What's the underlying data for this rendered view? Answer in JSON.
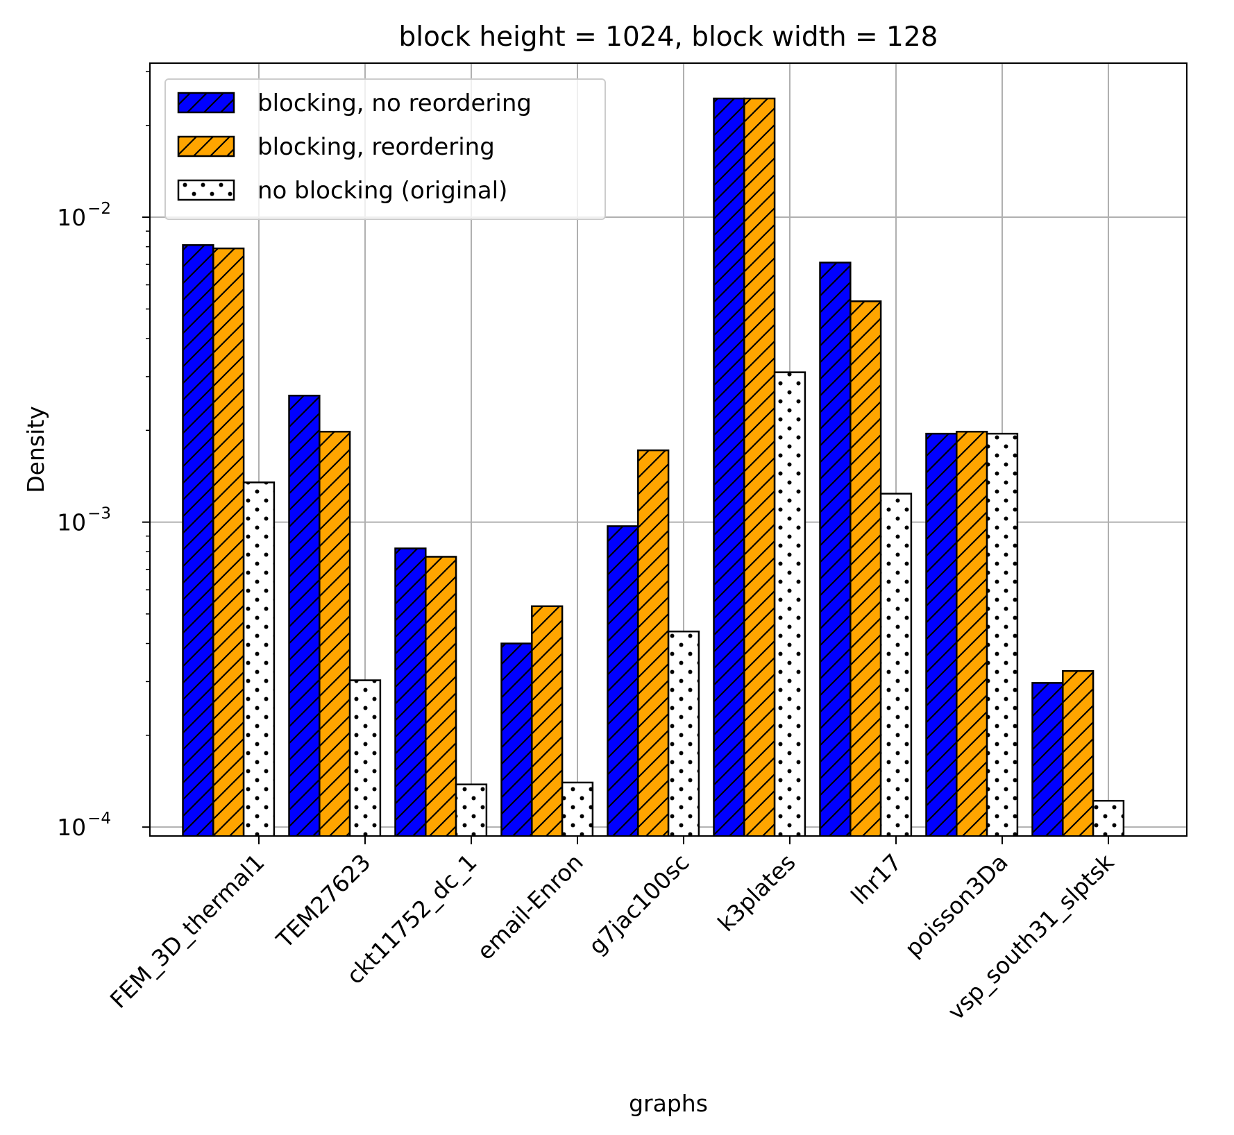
{
  "chart_data": {
    "type": "bar",
    "title": "block height = 1024, block width = 128",
    "xlabel": "graphs",
    "ylabel": "Density",
    "yscale": "log",
    "ylim": [
      9.35e-05,
      0.032
    ],
    "yticks": [
      {
        "value": 0.0001,
        "base": "10",
        "exp": "−4"
      },
      {
        "value": 0.001,
        "base": "10",
        "exp": "−3"
      },
      {
        "value": 0.01,
        "base": "10",
        "exp": "−2"
      }
    ],
    "grid": true,
    "legend_position": "top-left",
    "categories": [
      "FEM_3D_thermal1",
      "TEM27623",
      "ckt11752_dc_1",
      "email-Enron",
      "g7jac100sc",
      "k3plates",
      "lhr17",
      "poisson3Da",
      "vsp_south31_slptsk"
    ],
    "series": [
      {
        "name": "blocking, no reordering",
        "color": "#0000ff",
        "hatch": "diagonal",
        "values": [
          0.0081,
          0.0026,
          0.00082,
          0.0004,
          0.00097,
          0.0245,
          0.0071,
          0.00195,
          0.000297
        ]
      },
      {
        "name": "blocking, reordering",
        "color": "#ffa500",
        "hatch": "diagonal",
        "values": [
          0.0079,
          0.00198,
          0.00077,
          0.00053,
          0.00172,
          0.0245,
          0.0053,
          0.00198,
          0.000325
        ]
      },
      {
        "name": "no blocking (original)",
        "color": "#ffffff",
        "hatch": "dots",
        "values": [
          0.00135,
          0.000303,
          0.000138,
          0.00014,
          0.000438,
          0.0031,
          0.00124,
          0.00195,
          0.000122
        ]
      }
    ]
  }
}
